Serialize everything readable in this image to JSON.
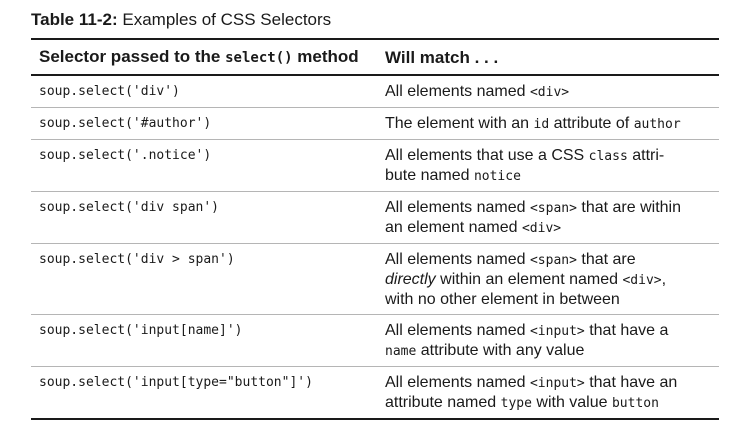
{
  "caption": {
    "label": "Table 11-2:",
    "text": "Examples of CSS Selectors"
  },
  "header": {
    "col1_prefix": "Selector passed to the ",
    "col1_code": "select()",
    "col1_suffix": " method",
    "col2": "Will match . . ."
  },
  "rows": [
    {
      "selector": "soup.select('div')",
      "m1": "All elements named ",
      "m2": "<div>"
    },
    {
      "selector": "soup.select('#author')",
      "m1": "The element with an ",
      "m2": "id",
      "m3": " attribute of ",
      "m4": "author"
    },
    {
      "selector": "soup.select('.notice')",
      "m1": "All elements that use a CSS ",
      "m2": "class",
      "m3": " attri-",
      "m4": "bute named ",
      "m5": "notice"
    },
    {
      "selector": "soup.select('div span')",
      "m1": "All elements named ",
      "m2": "<span>",
      "m3": " that are within",
      "m4": "an element named ",
      "m5": "<div>"
    },
    {
      "selector": "soup.select('div > span')",
      "m1": "All elements named ",
      "m2": "<span>",
      "m3": " that are",
      "m4": "directly",
      "m5": " within an element named ",
      "m6": "<div>",
      "m7": ",",
      "m8": "with no other element in between"
    },
    {
      "selector": "soup.select('input[name]')",
      "m1": "All elements named ",
      "m2": "<input>",
      "m3": " that have a",
      "m4": "name",
      "m5": " attribute with any value"
    },
    {
      "selector": "soup.select('input[type=\"button\"]')",
      "m1": "All elements named ",
      "m2": "<input>",
      "m3": " that have an",
      "m4": "attribute named ",
      "m5": "type",
      "m6": " with value ",
      "m7": "button"
    }
  ]
}
